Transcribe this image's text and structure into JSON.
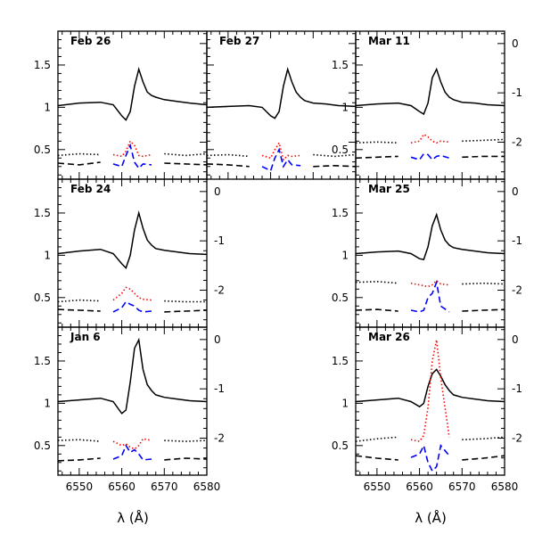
{
  "chart_data": {
    "type": "line",
    "xlabel": "λ (Å)",
    "x_ticks": [
      6550,
      6560,
      6570,
      6580
    ],
    "xlim": [
      6545,
      6580
    ],
    "left_ticks": [
      "0.5",
      "1",
      "1.5"
    ],
    "left_ylim": [
      0.15,
      1.9
    ],
    "right_ticks": [
      "0",
      "-1",
      "-2"
    ],
    "right_ylim": [
      -2.75,
      0.25
    ],
    "panels": [
      {
        "label": "Feb 26",
        "series": [
          {
            "name": "black",
            "x": [
              6545,
              6550,
              6555,
              6558,
              6560,
              6561,
              6562,
              6563,
              6564,
              6565,
              6566,
              6567,
              6568,
              6570,
              6573,
              6576,
              6580
            ],
            "y": [
              1.02,
              1.05,
              1.06,
              1.03,
              0.9,
              0.85,
              0.95,
              1.25,
              1.45,
              1.3,
              1.18,
              1.14,
              1.12,
              1.09,
              1.07,
              1.05,
              1.03
            ]
          },
          {
            "name": "dotted",
            "x": [
              6545,
              6550,
              6555,
              6558,
              6560,
              6561,
              6562,
              6563,
              6564,
              6565,
              6567,
              6570,
              6575,
              6580
            ],
            "y": [
              0.43,
              0.45,
              0.44,
              0.44,
              0.42,
              0.48,
              0.6,
              0.55,
              0.43,
              0.42,
              0.44,
              0.45,
              0.43,
              0.45
            ]
          },
          {
            "name": "dashed",
            "x": [
              6545,
              6550,
              6555,
              6558,
              6560,
              6561,
              6562,
              6563,
              6564,
              6565,
              6567,
              6570,
              6575,
              6580
            ],
            "y": [
              0.34,
              0.32,
              0.35,
              0.33,
              0.3,
              0.43,
              0.55,
              0.35,
              0.28,
              0.33,
              0.32,
              0.34,
              0.33,
              0.32
            ]
          }
        ]
      },
      {
        "label": "Feb 27",
        "series": [
          {
            "name": "black",
            "x": [
              6545,
              6550,
              6555,
              6558,
              6560,
              6561,
              6562,
              6563,
              6564,
              6565,
              6566,
              6567,
              6568,
              6570,
              6573,
              6576,
              6580
            ],
            "y": [
              1.0,
              1.01,
              1.02,
              1.0,
              0.9,
              0.87,
              0.95,
              1.25,
              1.45,
              1.3,
              1.18,
              1.12,
              1.08,
              1.05,
              1.04,
              1.02,
              1.01
            ]
          },
          {
            "name": "dotted",
            "x": [
              6545,
              6550,
              6555,
              6558,
              6560,
              6561,
              6562,
              6563,
              6564,
              6565,
              6567,
              6570,
              6575,
              6580
            ],
            "y": [
              0.43,
              0.44,
              0.42,
              0.43,
              0.4,
              0.5,
              0.58,
              0.38,
              0.43,
              0.42,
              0.43,
              0.44,
              0.42,
              0.44
            ]
          },
          {
            "name": "dashed",
            "x": [
              6545,
              6550,
              6555,
              6558,
              6560,
              6561,
              6562,
              6563,
              6564,
              6565,
              6567,
              6570,
              6575,
              6580
            ],
            "y": [
              0.33,
              0.32,
              0.3,
              0.3,
              0.25,
              0.4,
              0.5,
              0.3,
              0.38,
              0.32,
              0.31,
              0.3,
              0.31,
              0.3
            ]
          }
        ]
      },
      {
        "label": "Mar 11",
        "series": [
          {
            "name": "black",
            "x": [
              6545,
              6550,
              6555,
              6558,
              6560,
              6561,
              6562,
              6563,
              6564,
              6565,
              6566,
              6567,
              6568,
              6570,
              6573,
              6576,
              6580
            ],
            "y": [
              1.02,
              1.04,
              1.05,
              1.02,
              0.95,
              0.92,
              1.05,
              1.35,
              1.45,
              1.3,
              1.18,
              1.12,
              1.09,
              1.06,
              1.05,
              1.03,
              1.02
            ]
          },
          {
            "name": "dotted",
            "x": [
              6545,
              6550,
              6555,
              6558,
              6560,
              6561,
              6562,
              6563,
              6564,
              6565,
              6567,
              6570,
              6575,
              6580
            ],
            "y": [
              0.58,
              0.59,
              0.58,
              0.58,
              0.6,
              0.68,
              0.65,
              0.6,
              0.58,
              0.6,
              0.59,
              0.6,
              0.61,
              0.62
            ]
          },
          {
            "name": "dashed",
            "x": [
              6545,
              6550,
              6555,
              6558,
              6560,
              6561,
              6562,
              6563,
              6564,
              6565,
              6567,
              6570,
              6575,
              6580
            ],
            "y": [
              0.4,
              0.41,
              0.42,
              0.41,
              0.38,
              0.45,
              0.44,
              0.38,
              0.42,
              0.43,
              0.4,
              0.41,
              0.42,
              0.42
            ]
          }
        ]
      },
      {
        "label": "Feb 24",
        "series": [
          {
            "name": "black",
            "x": [
              6545,
              6550,
              6555,
              6558,
              6560,
              6561,
              6562,
              6563,
              6564,
              6565,
              6566,
              6567,
              6568,
              6570,
              6573,
              6576,
              6580
            ],
            "y": [
              1.02,
              1.05,
              1.07,
              1.02,
              0.9,
              0.85,
              1.0,
              1.3,
              1.5,
              1.32,
              1.18,
              1.12,
              1.08,
              1.06,
              1.04,
              1.02,
              1.01
            ]
          },
          {
            "name": "dotted",
            "x": [
              6545,
              6550,
              6555,
              6558,
              6560,
              6561,
              6562,
              6563,
              6564,
              6565,
              6567,
              6570,
              6575,
              6580
            ],
            "y": [
              0.45,
              0.47,
              0.46,
              0.47,
              0.55,
              0.62,
              0.6,
              0.55,
              0.5,
              0.48,
              0.47,
              0.46,
              0.45,
              0.45
            ]
          },
          {
            "name": "dashed",
            "x": [
              6545,
              6550,
              6555,
              6558,
              6560,
              6561,
              6562,
              6563,
              6564,
              6565,
              6567,
              6570,
              6575,
              6580
            ],
            "y": [
              0.36,
              0.35,
              0.34,
              0.33,
              0.38,
              0.45,
              0.42,
              0.4,
              0.35,
              0.33,
              0.34,
              0.33,
              0.34,
              0.35
            ]
          }
        ]
      },
      {
        "label": "Mar 25",
        "series": [
          {
            "name": "black",
            "x": [
              6545,
              6550,
              6555,
              6558,
              6560,
              6561,
              6562,
              6563,
              6564,
              6565,
              6566,
              6567,
              6568,
              6570,
              6573,
              6576,
              6580
            ],
            "y": [
              1.02,
              1.04,
              1.05,
              1.02,
              0.96,
              0.95,
              1.1,
              1.35,
              1.48,
              1.3,
              1.18,
              1.12,
              1.09,
              1.07,
              1.05,
              1.03,
              1.02
            ]
          },
          {
            "name": "dotted",
            "x": [
              6545,
              6550,
              6555,
              6558,
              6560,
              6561,
              6562,
              6563,
              6564,
              6565,
              6567,
              6570,
              6575,
              6580
            ],
            "y": [
              0.68,
              0.69,
              0.67,
              0.67,
              0.65,
              0.64,
              0.63,
              0.65,
              0.7,
              0.66,
              0.65,
              0.66,
              0.67,
              0.66
            ]
          },
          {
            "name": "dashed",
            "x": [
              6545,
              6550,
              6555,
              6558,
              6560,
              6561,
              6562,
              6563,
              6564,
              6565,
              6567,
              6570,
              6575,
              6580
            ],
            "y": [
              0.35,
              0.36,
              0.34,
              0.35,
              0.33,
              0.35,
              0.5,
              0.55,
              0.68,
              0.4,
              0.33,
              0.34,
              0.35,
              0.36
            ]
          }
        ]
      },
      {
        "label": "Jan 6",
        "series": [
          {
            "name": "black",
            "x": [
              6545,
              6550,
              6555,
              6558,
              6560,
              6561,
              6562,
              6563,
              6564,
              6565,
              6566,
              6567,
              6568,
              6570,
              6573,
              6576,
              6580
            ],
            "y": [
              1.02,
              1.04,
              1.06,
              1.02,
              0.88,
              0.92,
              1.25,
              1.65,
              1.75,
              1.4,
              1.22,
              1.15,
              1.1,
              1.07,
              1.05,
              1.03,
              1.02
            ]
          },
          {
            "name": "dotted",
            "x": [
              6545,
              6550,
              6555,
              6558,
              6560,
              6561,
              6562,
              6563,
              6564,
              6565,
              6567,
              6570,
              6575,
              6580
            ],
            "y": [
              0.56,
              0.57,
              0.55,
              0.55,
              0.5,
              0.52,
              0.48,
              0.46,
              0.5,
              0.58,
              0.56,
              0.56,
              0.55,
              0.56
            ]
          },
          {
            "name": "dashed",
            "x": [
              6545,
              6550,
              6555,
              6558,
              6560,
              6561,
              6562,
              6563,
              6564,
              6565,
              6567,
              6570,
              6575,
              6580
            ],
            "y": [
              0.32,
              0.33,
              0.35,
              0.34,
              0.38,
              0.5,
              0.42,
              0.45,
              0.4,
              0.33,
              0.34,
              0.33,
              0.35,
              0.34
            ]
          }
        ]
      },
      {
        "label": "Mar 26",
        "series": [
          {
            "name": "black",
            "x": [
              6545,
              6550,
              6555,
              6558,
              6560,
              6561,
              6562,
              6563,
              6564,
              6565,
              6566,
              6567,
              6568,
              6570,
              6573,
              6576,
              6580
            ],
            "y": [
              1.02,
              1.04,
              1.06,
              1.02,
              0.96,
              1.0,
              1.2,
              1.35,
              1.4,
              1.32,
              1.22,
              1.15,
              1.1,
              1.07,
              1.05,
              1.03,
              1.02
            ]
          },
          {
            "name": "dotted",
            "x": [
              6545,
              6550,
              6555,
              6558,
              6560,
              6561,
              6562,
              6563,
              6564,
              6565,
              6567,
              6570,
              6575,
              6580
            ],
            "y": [
              0.55,
              0.58,
              0.6,
              0.57,
              0.55,
              0.62,
              0.95,
              1.5,
              1.75,
              1.3,
              0.6,
              0.57,
              0.58,
              0.6
            ]
          },
          {
            "name": "dashed",
            "x": [
              6545,
              6550,
              6555,
              6558,
              6560,
              6561,
              6562,
              6563,
              6564,
              6565,
              6567,
              6570,
              6575,
              6580
            ],
            "y": [
              0.38,
              0.35,
              0.33,
              0.36,
              0.4,
              0.5,
              0.3,
              0.2,
              0.25,
              0.5,
              0.38,
              0.33,
              0.35,
              0.38
            ]
          }
        ]
      }
    ]
  },
  "style": {
    "black_color": "#000000",
    "dotted_color": "#ff0000",
    "dashed_color": "#0000ff"
  }
}
